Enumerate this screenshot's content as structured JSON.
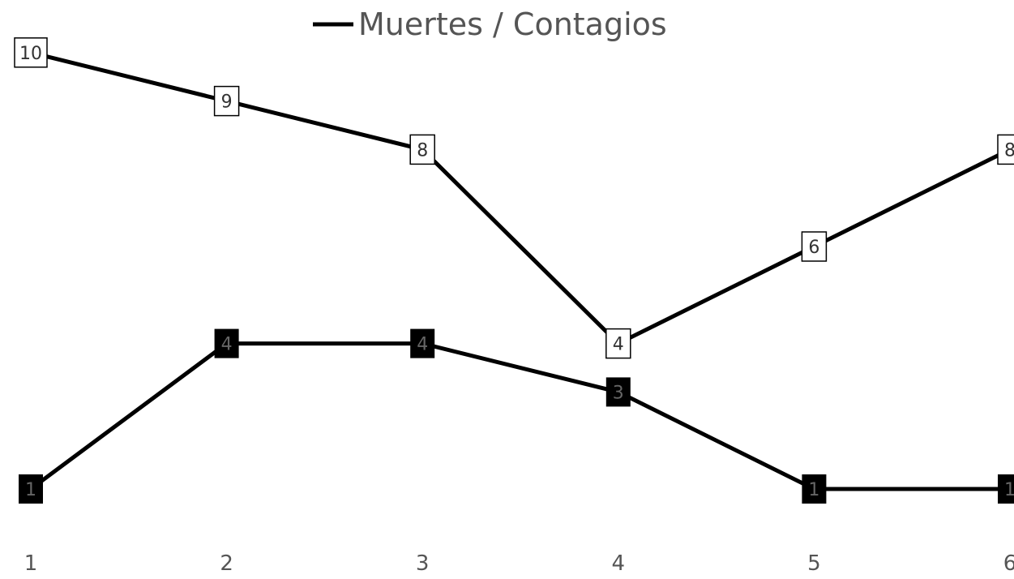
{
  "chart_data": {
    "type": "line",
    "title": "",
    "xlabel": "",
    "ylabel": "",
    "categories": [
      "1",
      "2",
      "3",
      "4",
      "5",
      "6"
    ],
    "ylim": [
      0,
      10.5
    ],
    "grid": false,
    "legend_position": "top",
    "series": [
      {
        "name": "Muertes / Contagios",
        "values": [
          10,
          9,
          8,
          4,
          6,
          8
        ],
        "line_color": "#000000",
        "label_style": "white-box"
      },
      {
        "values": [
          1,
          4,
          4,
          3,
          1,
          1
        ],
        "line_color": "#000000",
        "label_style": "black-box"
      }
    ]
  }
}
